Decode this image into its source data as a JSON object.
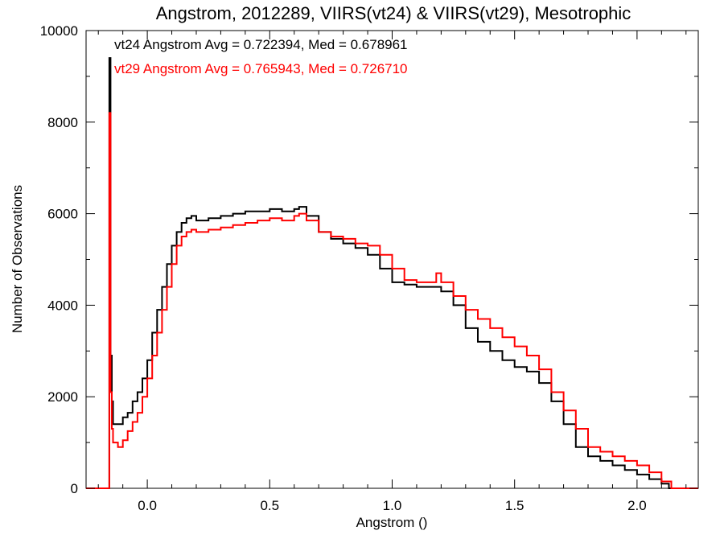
{
  "chart_data": {
    "type": "line",
    "step": true,
    "title": "Angstrom, 2012289, VIIRS(vt24) & VIIRS(vt29), Mesotrophic",
    "xlabel": "Angstrom ()",
    "ylabel": "Number of Observations",
    "xlim": [
      -0.25,
      2.25
    ],
    "ylim": [
      0,
      10000
    ],
    "x_ticks": [
      0.0,
      0.5,
      1.0,
      1.5,
      2.0
    ],
    "x_tick_labels": [
      "0.0",
      "0.5",
      "1.0",
      "1.5",
      "2.0"
    ],
    "y_ticks": [
      0,
      2000,
      4000,
      6000,
      8000,
      10000
    ],
    "y_tick_labels": [
      "0",
      "2000",
      "4000",
      "6000",
      "8000",
      "10000"
    ],
    "grid": false,
    "annotations": [
      {
        "text": "vt24 Angstrom Avg = 0.722394, Med = 0.678961",
        "color": "#000000"
      },
      {
        "text": "vt29 Angstrom Avg = 0.765943, Med = 0.726710",
        "color": "#ff0000"
      }
    ],
    "series": [
      {
        "color": "#000000",
        "x": [
          -0.25,
          -0.16,
          -0.155,
          -0.15,
          -0.145,
          -0.14,
          -0.12,
          -0.1,
          -0.08,
          -0.06,
          -0.04,
          -0.02,
          0.0,
          0.02,
          0.04,
          0.06,
          0.08,
          0.1,
          0.12,
          0.14,
          0.16,
          0.18,
          0.2,
          0.25,
          0.3,
          0.35,
          0.4,
          0.45,
          0.5,
          0.55,
          0.6,
          0.62,
          0.65,
          0.7,
          0.75,
          0.8,
          0.85,
          0.9,
          0.95,
          1.0,
          1.05,
          1.1,
          1.15,
          1.2,
          1.25,
          1.3,
          1.35,
          1.4,
          1.45,
          1.5,
          1.55,
          1.6,
          1.65,
          1.7,
          1.75,
          1.8,
          1.85,
          1.9,
          1.95,
          2.0,
          2.05,
          2.1,
          2.13,
          2.25
        ],
        "y": [
          0,
          0,
          9400,
          2900,
          1900,
          1400,
          1400,
          1550,
          1650,
          1900,
          2100,
          2400,
          2800,
          3400,
          3900,
          4400,
          4900,
          5300,
          5600,
          5800,
          5900,
          5950,
          5850,
          5900,
          5950,
          6000,
          6050,
          6050,
          6100,
          6050,
          6100,
          6150,
          5950,
          5600,
          5450,
          5350,
          5250,
          5100,
          4800,
          4500,
          4450,
          4400,
          4400,
          4300,
          4000,
          3500,
          3200,
          3000,
          2800,
          2650,
          2550,
          2300,
          1900,
          1400,
          900,
          700,
          600,
          500,
          400,
          300,
          200,
          100,
          0,
          0
        ]
      },
      {
        "color": "#ff0000",
        "x": [
          -0.25,
          -0.16,
          -0.155,
          -0.15,
          -0.145,
          -0.14,
          -0.12,
          -0.1,
          -0.08,
          -0.06,
          -0.04,
          -0.02,
          0.0,
          0.02,
          0.04,
          0.06,
          0.08,
          0.1,
          0.12,
          0.14,
          0.16,
          0.18,
          0.2,
          0.25,
          0.3,
          0.35,
          0.4,
          0.45,
          0.5,
          0.55,
          0.6,
          0.62,
          0.65,
          0.7,
          0.75,
          0.8,
          0.85,
          0.9,
          0.95,
          1.0,
          1.05,
          1.1,
          1.15,
          1.18,
          1.2,
          1.25,
          1.3,
          1.35,
          1.4,
          1.45,
          1.5,
          1.55,
          1.6,
          1.65,
          1.7,
          1.75,
          1.8,
          1.85,
          1.9,
          1.95,
          2.0,
          2.05,
          2.1,
          2.14,
          2.25
        ],
        "y": [
          0,
          0,
          8200,
          2100,
          1300,
          1000,
          900,
          1050,
          1250,
          1450,
          1650,
          2000,
          2400,
          2900,
          3400,
          3900,
          4400,
          4900,
          5300,
          5500,
          5600,
          5650,
          5600,
          5650,
          5700,
          5750,
          5800,
          5850,
          5900,
          5850,
          5950,
          6000,
          5850,
          5600,
          5500,
          5450,
          5350,
          5300,
          5100,
          4800,
          4550,
          4500,
          4500,
          4700,
          4500,
          4200,
          3900,
          3700,
          3500,
          3300,
          3100,
          2900,
          2600,
          2100,
          1700,
          1300,
          900,
          800,
          700,
          600,
          500,
          350,
          150,
          0,
          0
        ]
      }
    ]
  }
}
